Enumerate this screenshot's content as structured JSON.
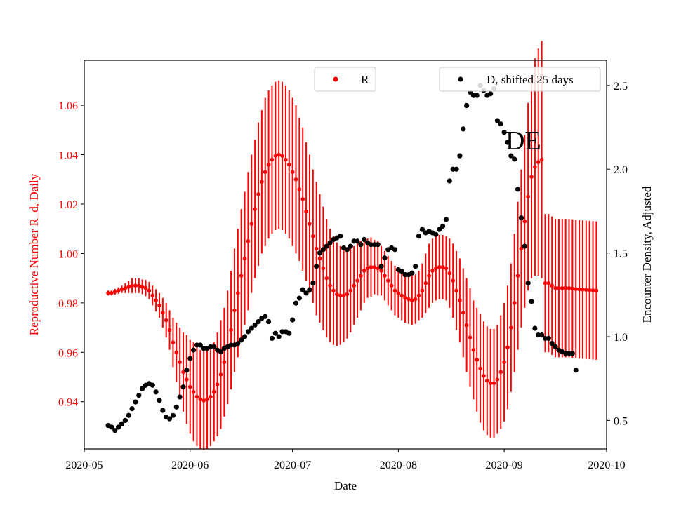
{
  "chart_data": {
    "type": "scatter",
    "title": "",
    "xlabel": "Date",
    "ylabel_left": "Reproductive Number R_d, Daily",
    "ylabel_right": "Encounter Density, Adjusted",
    "annotation": "DE",
    "colors": {
      "left": "#ff0000",
      "right": "#000000",
      "frame": "#000000"
    },
    "x_ticks": [
      "2020-05",
      "2020-06",
      "2020-07",
      "2020-08",
      "2020-09",
      "2020-10"
    ],
    "x_tick_days": [
      0,
      31,
      61,
      92,
      123,
      153
    ],
    "xlim": [
      0,
      153
    ],
    "y_left_ticks": [
      "0.94",
      "0.96",
      "0.98",
      "1.00",
      "1.02",
      "1.04",
      "1.06"
    ],
    "y_left_tick_values": [
      0.94,
      0.96,
      0.98,
      1.0,
      1.02,
      1.04,
      1.06
    ],
    "y_left_lim": [
      0.9209,
      1.0782
    ],
    "y_right_ticks": [
      "0.5",
      "1.0",
      "1.5",
      "2.0",
      "2.5"
    ],
    "y_right_tick_values": [
      0.5,
      1.0,
      1.5,
      2.0,
      2.5
    ],
    "y_right_lim": [
      0.33,
      2.65
    ],
    "legend": [
      {
        "label": "R",
        "color": "#ff0000",
        "position": "top-center"
      },
      {
        "label": "D, shifted 25 days",
        "color": "#000000",
        "position": "top-right"
      }
    ],
    "series_R_points_note": "day offset from 2020-05-01, value, half error bar",
    "series_R": [
      [
        7,
        0.984,
        0.001
      ],
      [
        8,
        0.984,
        0.001
      ],
      [
        9,
        0.9845,
        0.0012
      ],
      [
        10,
        0.985,
        0.0013
      ],
      [
        11,
        0.9855,
        0.0015
      ],
      [
        12,
        0.986,
        0.002
      ],
      [
        13,
        0.9865,
        0.0025
      ],
      [
        14,
        0.987,
        0.003
      ],
      [
        15,
        0.987,
        0.003
      ],
      [
        16,
        0.987,
        0.003
      ],
      [
        17,
        0.9865,
        0.003
      ],
      [
        18,
        0.986,
        0.0033
      ],
      [
        19,
        0.985,
        0.0035
      ],
      [
        20,
        0.983,
        0.004
      ],
      [
        21,
        0.981,
        0.0045
      ],
      [
        22,
        0.979,
        0.005
      ],
      [
        23,
        0.976,
        0.006
      ],
      [
        24,
        0.973,
        0.007
      ],
      [
        25,
        0.969,
        0.008
      ],
      [
        26,
        0.964,
        0.01
      ],
      [
        27,
        0.96,
        0.012
      ],
      [
        28,
        0.956,
        0.014
      ],
      [
        29,
        0.952,
        0.016
      ],
      [
        30,
        0.949,
        0.018
      ],
      [
        31,
        0.946,
        0.019
      ],
      [
        32,
        0.944,
        0.02
      ],
      [
        33,
        0.942,
        0.02
      ],
      [
        34,
        0.941,
        0.02
      ],
      [
        35,
        0.9405,
        0.02
      ],
      [
        36,
        0.941,
        0.02
      ],
      [
        37,
        0.942,
        0.02
      ],
      [
        38,
        0.944,
        0.02
      ],
      [
        39,
        0.947,
        0.021
      ],
      [
        40,
        0.951,
        0.022
      ],
      [
        41,
        0.956,
        0.022
      ],
      [
        42,
        0.962,
        0.023
      ],
      [
        43,
        0.969,
        0.024
      ],
      [
        44,
        0.977,
        0.025
      ],
      [
        45,
        0.984,
        0.026
      ],
      [
        46,
        0.991,
        0.027
      ],
      [
        47,
        0.998,
        0.027
      ],
      [
        48,
        1.005,
        0.028
      ],
      [
        49,
        1.012,
        0.028
      ],
      [
        50,
        1.018,
        0.028
      ],
      [
        51,
        1.024,
        0.029
      ],
      [
        52,
        1.029,
        0.029
      ],
      [
        53,
        1.033,
        0.03
      ],
      [
        54,
        1.036,
        0.03
      ],
      [
        55,
        1.038,
        0.03
      ],
      [
        56,
        1.0395,
        0.03
      ],
      [
        57,
        1.04,
        0.03
      ],
      [
        58,
        1.0395,
        0.03
      ],
      [
        59,
        1.038,
        0.03
      ],
      [
        60,
        1.036,
        0.03
      ],
      [
        61,
        1.033,
        0.03
      ],
      [
        62,
        1.03,
        0.03
      ],
      [
        63,
        1.026,
        0.029
      ],
      [
        64,
        1.022,
        0.029
      ],
      [
        65,
        1.017,
        0.028
      ],
      [
        66,
        1.012,
        0.028
      ],
      [
        67,
        1.007,
        0.027
      ],
      [
        68,
        1.002,
        0.027
      ],
      [
        69,
        0.998,
        0.026
      ],
      [
        70,
        0.994,
        0.025
      ],
      [
        71,
        0.99,
        0.024
      ],
      [
        72,
        0.987,
        0.023
      ],
      [
        73,
        0.985,
        0.022
      ],
      [
        74,
        0.9835,
        0.021
      ],
      [
        75,
        0.983,
        0.02
      ],
      [
        76,
        0.983,
        0.019
      ],
      [
        77,
        0.9835,
        0.018
      ],
      [
        78,
        0.985,
        0.017
      ],
      [
        79,
        0.987,
        0.016
      ],
      [
        80,
        0.989,
        0.015
      ],
      [
        81,
        0.991,
        0.014
      ],
      [
        82,
        0.993,
        0.013
      ],
      [
        83,
        0.994,
        0.012
      ],
      [
        84,
        0.9945,
        0.012
      ],
      [
        85,
        0.9945,
        0.011
      ],
      [
        86,
        0.994,
        0.011
      ],
      [
        87,
        0.993,
        0.01
      ],
      [
        88,
        0.991,
        0.01
      ],
      [
        89,
        0.989,
        0.01
      ],
      [
        90,
        0.987,
        0.01
      ],
      [
        91,
        0.985,
        0.01
      ],
      [
        92,
        0.984,
        0.01
      ],
      [
        93,
        0.983,
        0.01
      ],
      [
        94,
        0.982,
        0.01
      ],
      [
        95,
        0.9815,
        0.01
      ],
      [
        96,
        0.981,
        0.01
      ],
      [
        97,
        0.9815,
        0.01
      ],
      [
        98,
        0.983,
        0.01
      ],
      [
        99,
        0.985,
        0.011
      ],
      [
        100,
        0.988,
        0.012
      ],
      [
        101,
        0.991,
        0.013
      ],
      [
        102,
        0.993,
        0.013
      ],
      [
        103,
        0.994,
        0.013
      ],
      [
        104,
        0.9945,
        0.013
      ],
      [
        105,
        0.9945,
        0.013
      ],
      [
        106,
        0.994,
        0.013
      ],
      [
        107,
        0.992,
        0.014
      ],
      [
        108,
        0.989,
        0.015
      ],
      [
        109,
        0.985,
        0.016
      ],
      [
        110,
        0.981,
        0.017
      ],
      [
        111,
        0.976,
        0.018
      ],
      [
        112,
        0.971,
        0.019
      ],
      [
        113,
        0.966,
        0.02
      ],
      [
        114,
        0.961,
        0.02
      ],
      [
        115,
        0.957,
        0.021
      ],
      [
        116,
        0.9535,
        0.022
      ],
      [
        117,
        0.9505,
        0.022
      ],
      [
        118,
        0.9485,
        0.022
      ],
      [
        119,
        0.9475,
        0.022
      ],
      [
        120,
        0.9475,
        0.022
      ],
      [
        121,
        0.949,
        0.022
      ],
      [
        122,
        0.952,
        0.023
      ],
      [
        123,
        0.956,
        0.024
      ],
      [
        124,
        0.962,
        0.025
      ],
      [
        125,
        0.97,
        0.026
      ],
      [
        126,
        0.98,
        0.028
      ],
      [
        127,
        0.991,
        0.03
      ],
      [
        128,
        1.002,
        0.032
      ],
      [
        129,
        1.013,
        0.035
      ],
      [
        130,
        1.023,
        0.038
      ],
      [
        131,
        1.031,
        0.041
      ],
      [
        132,
        1.035,
        0.044
      ],
      [
        133,
        1.037,
        0.046
      ],
      [
        134,
        1.038,
        0.048
      ],
      [
        135,
        0.988,
        0.028
      ],
      [
        136,
        0.988,
        0.028
      ],
      [
        137,
        0.987,
        0.028
      ],
      [
        138,
        0.986,
        0.028
      ],
      [
        139,
        0.986,
        0.028
      ],
      [
        140,
        0.986,
        0.028
      ],
      [
        141,
        0.986,
        0.028
      ],
      [
        142,
        0.986,
        0.028
      ],
      [
        143,
        0.9858,
        0.028
      ],
      [
        144,
        0.9856,
        0.028
      ],
      [
        145,
        0.9855,
        0.028
      ],
      [
        146,
        0.9854,
        0.028
      ],
      [
        147,
        0.9853,
        0.028
      ],
      [
        148,
        0.9852,
        0.028
      ],
      [
        149,
        0.9851,
        0.028
      ],
      [
        150,
        0.985,
        0.028
      ]
    ],
    "series_D_points_note": "day offset from 2020-05-01, value",
    "series_D": [
      [
        7,
        0.47
      ],
      [
        8,
        0.46
      ],
      [
        9,
        0.44
      ],
      [
        10,
        0.46
      ],
      [
        11,
        0.48
      ],
      [
        12,
        0.5
      ],
      [
        13,
        0.53
      ],
      [
        14,
        0.57
      ],
      [
        15,
        0.61
      ],
      [
        16,
        0.65
      ],
      [
        17,
        0.69
      ],
      [
        18,
        0.71
      ],
      [
        19,
        0.72
      ],
      [
        20,
        0.71
      ],
      [
        21,
        0.67
      ],
      [
        22,
        0.62
      ],
      [
        23,
        0.56
      ],
      [
        24,
        0.52
      ],
      [
        25,
        0.51
      ],
      [
        26,
        0.53
      ],
      [
        27,
        0.58
      ],
      [
        28,
        0.64
      ],
      [
        29,
        0.7
      ],
      [
        30,
        0.8
      ],
      [
        31,
        0.87
      ],
      [
        32,
        0.92
      ],
      [
        33,
        0.95
      ],
      [
        34,
        0.95
      ],
      [
        35,
        0.93
      ],
      [
        36,
        0.93
      ],
      [
        37,
        0.94
      ],
      [
        38,
        0.94
      ],
      [
        39,
        0.92
      ],
      [
        40,
        0.91
      ],
      [
        41,
        0.93
      ],
      [
        42,
        0.94
      ],
      [
        43,
        0.95
      ],
      [
        44,
        0.95
      ],
      [
        45,
        0.96
      ],
      [
        46,
        0.98
      ],
      [
        47,
        1.0
      ],
      [
        48,
        1.03
      ],
      [
        49,
        1.05
      ],
      [
        50,
        1.07
      ],
      [
        51,
        1.09
      ],
      [
        52,
        1.11
      ],
      [
        53,
        1.12
      ],
      [
        54,
        1.09
      ],
      [
        55,
        0.99
      ],
      [
        56,
        1.02
      ],
      [
        57,
        1.0
      ],
      [
        58,
        1.03
      ],
      [
        59,
        1.03
      ],
      [
        60,
        1.02
      ],
      [
        61,
        1.1
      ],
      [
        62,
        1.2
      ],
      [
        63,
        1.23
      ],
      [
        64,
        1.28
      ],
      [
        65,
        1.26
      ],
      [
        66,
        1.28
      ],
      [
        67,
        1.32
      ],
      [
        68,
        1.42
      ],
      [
        69,
        1.5
      ],
      [
        70,
        1.52
      ],
      [
        71,
        1.54
      ],
      [
        72,
        1.56
      ],
      [
        73,
        1.58
      ],
      [
        74,
        1.59
      ],
      [
        75,
        1.6
      ],
      [
        76,
        1.53
      ],
      [
        77,
        1.52
      ],
      [
        78,
        1.54
      ],
      [
        79,
        1.57
      ],
      [
        80,
        1.57
      ],
      [
        81,
        1.55
      ],
      [
        82,
        1.58
      ],
      [
        83,
        1.56
      ],
      [
        84,
        1.55
      ],
      [
        85,
        1.55
      ],
      [
        86,
        1.55
      ],
      [
        87,
        1.42
      ],
      [
        88,
        1.47
      ],
      [
        89,
        1.52
      ],
      [
        90,
        1.53
      ],
      [
        91,
        1.52
      ],
      [
        92,
        1.4
      ],
      [
        93,
        1.39
      ],
      [
        94,
        1.37
      ],
      [
        95,
        1.37
      ],
      [
        96,
        1.38
      ],
      [
        97,
        1.42
      ],
      [
        98,
        1.6
      ],
      [
        99,
        1.64
      ],
      [
        100,
        1.62
      ],
      [
        101,
        1.63
      ],
      [
        102,
        1.62
      ],
      [
        103,
        1.61
      ],
      [
        104,
        1.64
      ],
      [
        105,
        1.66
      ],
      [
        106,
        1.7
      ],
      [
        107,
        1.93
      ],
      [
        108,
        2.0
      ],
      [
        109,
        2.0
      ],
      [
        110,
        2.08
      ],
      [
        111,
        2.24
      ],
      [
        112,
        2.38
      ],
      [
        113,
        2.46
      ],
      [
        114,
        2.44
      ],
      [
        115,
        2.44
      ],
      [
        116,
        2.5
      ],
      [
        117,
        2.47
      ],
      [
        118,
        2.44
      ],
      [
        119,
        2.45
      ],
      [
        120,
        2.48
      ],
      [
        121,
        2.29
      ],
      [
        122,
        2.27
      ],
      [
        123,
        2.22
      ],
      [
        124,
        2.16
      ],
      [
        125,
        2.08
      ],
      [
        126,
        2.06
      ],
      [
        127,
        1.88
      ],
      [
        128,
        1.71
      ],
      [
        129,
        1.54
      ],
      [
        130,
        1.32
      ],
      [
        131,
        1.21
      ],
      [
        132,
        1.05
      ],
      [
        133,
        1.01
      ],
      [
        134,
        1.01
      ],
      [
        135,
        0.99
      ],
      [
        136,
        0.99
      ],
      [
        137,
        0.96
      ],
      [
        138,
        0.94
      ],
      [
        139,
        0.92
      ],
      [
        140,
        0.91
      ],
      [
        141,
        0.9
      ],
      [
        142,
        0.9
      ],
      [
        143,
        0.9
      ],
      [
        144,
        0.8
      ]
    ]
  }
}
